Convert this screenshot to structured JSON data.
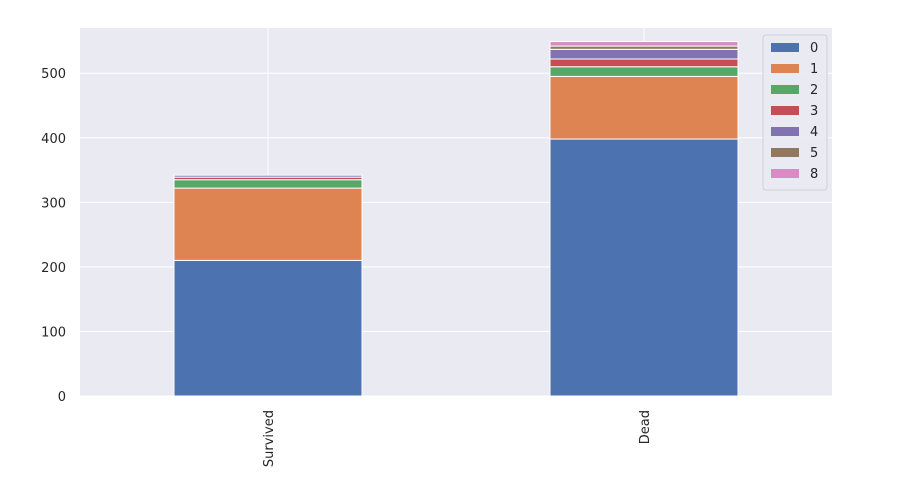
{
  "chart_data": {
    "type": "bar",
    "stacked": true,
    "title": "",
    "xlabel": "",
    "ylabel": "",
    "categories": [
      "Survived",
      "Dead"
    ],
    "ylim": [
      0,
      570
    ],
    "yticks": [
      0,
      100,
      200,
      300,
      400,
      500
    ],
    "grid": true,
    "legend_position": "top-right",
    "series": [
      {
        "name": "0",
        "color": "#4C72B0",
        "values": [
          210,
          398
        ]
      },
      {
        "name": "1",
        "color": "#DD8452",
        "values": [
          112,
          97
        ]
      },
      {
        "name": "2",
        "color": "#55A868",
        "values": [
          13,
          15
        ]
      },
      {
        "name": "3",
        "color": "#C44E52",
        "values": [
          4,
          12
        ]
      },
      {
        "name": "4",
        "color": "#8172B3",
        "values": [
          3,
          15
        ]
      },
      {
        "name": "5",
        "color": "#937860",
        "values": [
          0,
          5
        ]
      },
      {
        "name": "8",
        "color": "#DA8BC3",
        "values": [
          0,
          7
        ]
      }
    ]
  }
}
